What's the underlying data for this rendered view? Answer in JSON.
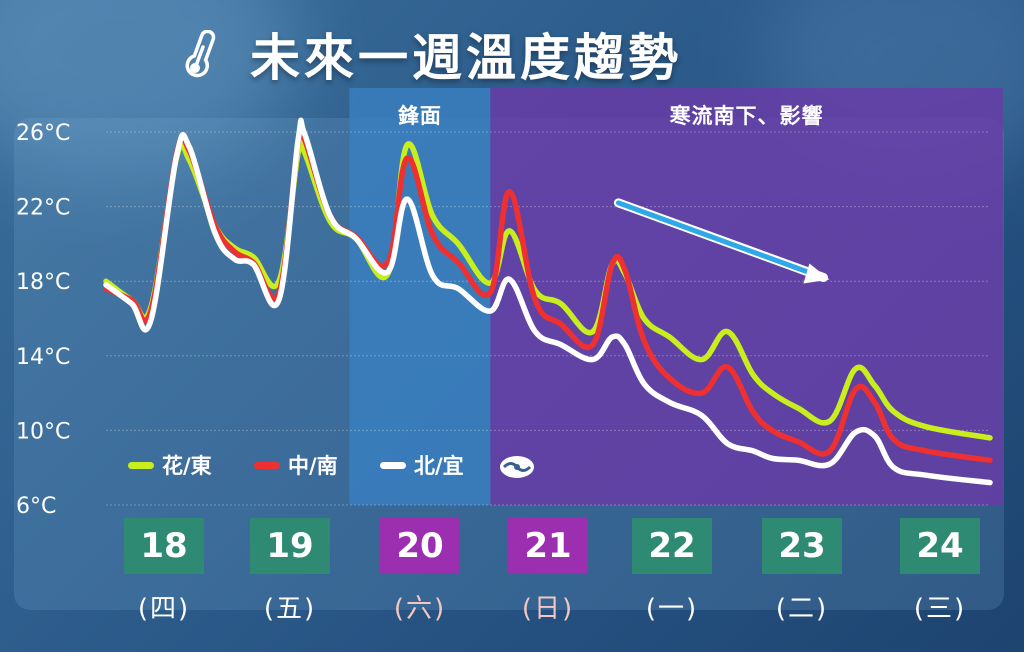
{
  "title": "未來一週溫度趨勢",
  "icons": {
    "title": "thermometer-icon",
    "logo": "weather-agency-logo-icon"
  },
  "bands": [
    {
      "label": "鋒面",
      "color": "#3a7fc0",
      "from": 19.9,
      "to": 21.0
    },
    {
      "label": "寒流南下、影響",
      "color": "#6a3aa8",
      "from": 21.0,
      "to": 25.0
    }
  ],
  "dates": [
    {
      "day": "18",
      "weekday": "(四)",
      "box_color": "#2e8a72",
      "weekday_color": "#ffffff"
    },
    {
      "day": "19",
      "weekday": "(五)",
      "box_color": "#2e8a72",
      "weekday_color": "#ffffff"
    },
    {
      "day": "20",
      "weekday": "(六)",
      "box_color": "#9b2fb0",
      "weekday_color": "#f4c6c2"
    },
    {
      "day": "21",
      "weekday": "(日)",
      "box_color": "#9b2fb0",
      "weekday_color": "#f4c6c2"
    },
    {
      "day": "22",
      "weekday": "(一)",
      "box_color": "#2e8a72",
      "weekday_color": "#ffffff"
    },
    {
      "day": "23",
      "weekday": "(二)",
      "box_color": "#2e8a72",
      "weekday_color": "#ffffff"
    },
    {
      "day": "24",
      "weekday": "(三)",
      "box_color": "#2e8a72",
      "weekday_color": "#ffffff"
    }
  ],
  "chart_data": {
    "type": "line",
    "x_unit": "day of month",
    "xlim": [
      18.0,
      24.9
    ],
    "ylim": [
      6,
      26
    ],
    "yticks": [
      26,
      22,
      18,
      14,
      10,
      6
    ],
    "ytick_labels": [
      "26°C",
      "22°C",
      "18°C",
      "14°C",
      "10°C",
      "6°C"
    ],
    "grid": true,
    "legend_position": "bottom-left",
    "trend_arrow": {
      "from": [
        22.0,
        22.2
      ],
      "to": [
        23.6,
        18.2
      ],
      "color": "#2ea8e8"
    },
    "series": [
      {
        "name": "花/東",
        "color": "#c8ee1e",
        "points": [
          [
            18.0,
            18.0
          ],
          [
            18.2,
            17.0
          ],
          [
            18.35,
            16.6
          ],
          [
            18.55,
            24.6
          ],
          [
            18.65,
            24.5
          ],
          [
            18.85,
            21.0
          ],
          [
            19.0,
            19.8
          ],
          [
            19.15,
            19.3
          ],
          [
            19.35,
            18.0
          ],
          [
            19.5,
            24.9
          ],
          [
            19.55,
            24.9
          ],
          [
            19.75,
            21.2
          ],
          [
            19.95,
            20.3
          ],
          [
            20.2,
            18.4
          ],
          [
            20.35,
            25.3
          ],
          [
            20.55,
            21.5
          ],
          [
            20.75,
            20.0
          ],
          [
            21.0,
            17.9
          ],
          [
            21.15,
            20.7
          ],
          [
            21.35,
            17.5
          ],
          [
            21.55,
            16.8
          ],
          [
            21.8,
            15.3
          ],
          [
            21.95,
            18.9
          ],
          [
            22.05,
            18.4
          ],
          [
            22.2,
            16.0
          ],
          [
            22.4,
            15.0
          ],
          [
            22.65,
            13.8
          ],
          [
            22.85,
            15.3
          ],
          [
            23.05,
            13.0
          ],
          [
            23.2,
            12.0
          ],
          [
            23.4,
            11.2
          ],
          [
            23.65,
            10.5
          ],
          [
            23.85,
            13.3
          ],
          [
            24.0,
            12.4
          ],
          [
            24.15,
            11.0
          ],
          [
            24.4,
            10.2
          ],
          [
            24.9,
            9.6
          ]
        ]
      },
      {
        "name": "中/南",
        "color": "#ee3030",
        "points": [
          [
            18.0,
            17.6
          ],
          [
            18.2,
            17.0
          ],
          [
            18.35,
            16.4
          ],
          [
            18.55,
            24.8
          ],
          [
            18.65,
            25.0
          ],
          [
            18.85,
            21.0
          ],
          [
            19.0,
            19.6
          ],
          [
            19.15,
            19.0
          ],
          [
            19.35,
            17.4
          ],
          [
            19.5,
            25.5
          ],
          [
            19.55,
            25.6
          ],
          [
            19.75,
            21.5
          ],
          [
            19.95,
            20.4
          ],
          [
            20.2,
            19.0
          ],
          [
            20.35,
            24.6
          ],
          [
            20.55,
            20.5
          ],
          [
            20.75,
            19.0
          ],
          [
            21.0,
            17.4
          ],
          [
            21.15,
            22.8
          ],
          [
            21.35,
            17.0
          ],
          [
            21.55,
            15.7
          ],
          [
            21.8,
            14.6
          ],
          [
            21.95,
            18.9
          ],
          [
            22.05,
            18.6
          ],
          [
            22.2,
            14.8
          ],
          [
            22.4,
            12.8
          ],
          [
            22.65,
            12.0
          ],
          [
            22.85,
            13.4
          ],
          [
            23.05,
            11.0
          ],
          [
            23.2,
            10.0
          ],
          [
            23.4,
            9.4
          ],
          [
            23.65,
            8.9
          ],
          [
            23.85,
            12.2
          ],
          [
            24.0,
            11.5
          ],
          [
            24.15,
            9.5
          ],
          [
            24.4,
            8.9
          ],
          [
            24.9,
            8.4
          ]
        ]
      },
      {
        "name": "北/宜",
        "color": "#ffffff",
        "points": [
          [
            18.0,
            17.8
          ],
          [
            18.2,
            16.8
          ],
          [
            18.35,
            15.9
          ],
          [
            18.55,
            24.7
          ],
          [
            18.65,
            25.2
          ],
          [
            18.85,
            20.6
          ],
          [
            19.0,
            19.2
          ],
          [
            19.15,
            18.9
          ],
          [
            19.35,
            17.0
          ],
          [
            19.5,
            25.6
          ],
          [
            19.55,
            25.9
          ],
          [
            19.75,
            21.5
          ],
          [
            19.95,
            20.3
          ],
          [
            20.2,
            18.5
          ],
          [
            20.35,
            22.4
          ],
          [
            20.55,
            18.3
          ],
          [
            20.75,
            17.6
          ],
          [
            21.0,
            16.4
          ],
          [
            21.15,
            18.1
          ],
          [
            21.35,
            15.3
          ],
          [
            21.55,
            14.6
          ],
          [
            21.8,
            13.8
          ],
          [
            21.95,
            15.0
          ],
          [
            22.05,
            14.6
          ],
          [
            22.2,
            12.5
          ],
          [
            22.4,
            11.5
          ],
          [
            22.65,
            10.8
          ],
          [
            22.85,
            9.3
          ],
          [
            23.05,
            8.9
          ],
          [
            23.2,
            8.5
          ],
          [
            23.4,
            8.4
          ],
          [
            23.65,
            8.2
          ],
          [
            23.85,
            9.9
          ],
          [
            24.0,
            9.7
          ],
          [
            24.15,
            8.0
          ],
          [
            24.4,
            7.6
          ],
          [
            24.9,
            7.2
          ]
        ]
      }
    ]
  }
}
